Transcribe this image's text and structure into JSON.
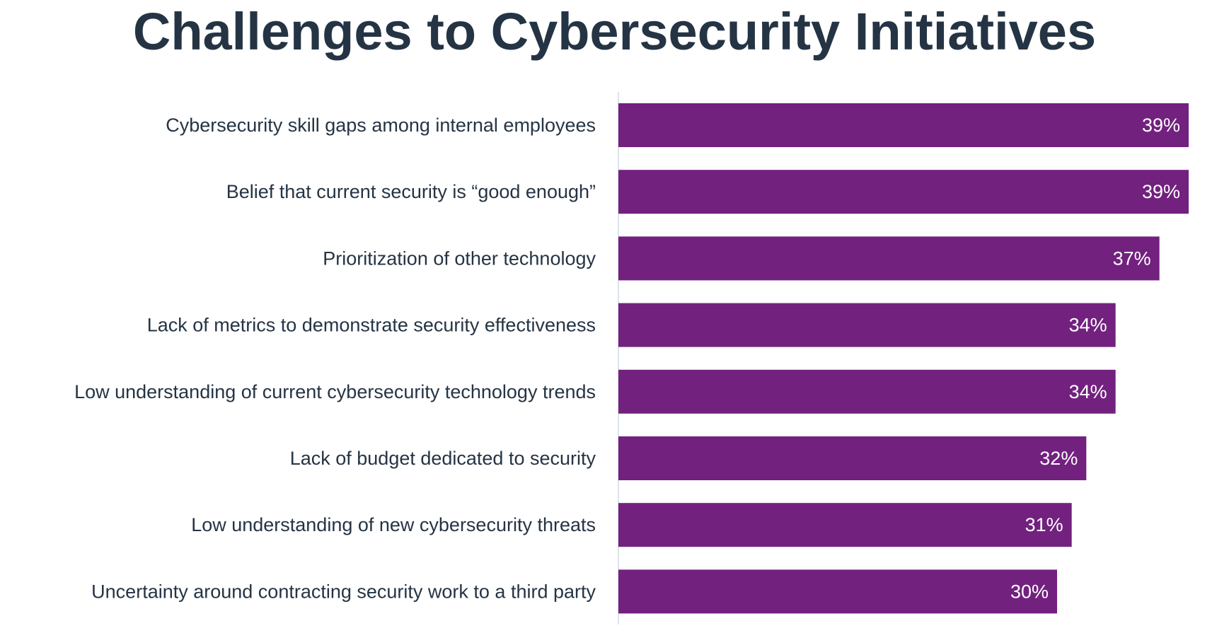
{
  "chart_data": {
    "type": "bar",
    "orientation": "horizontal",
    "title": "Challenges to Cybersecurity Initiatives",
    "categories": [
      "Cybersecurity skill gaps among internal employees",
      "Belief that current security is “good enough”",
      "Prioritization of other technology",
      "Lack of metrics to demonstrate security effectiveness",
      "Low understanding of current cybersecurity technology trends",
      "Lack of budget dedicated to security",
      "Low understanding of new cybersecurity threats",
      "Uncertainty around contracting security work to a third party"
    ],
    "values": [
      39,
      39,
      37,
      34,
      34,
      32,
      31,
      30
    ],
    "value_labels": [
      "39%",
      "39%",
      "37%",
      "34%",
      "34%",
      "32%",
      "31%",
      "30%"
    ],
    "unit": "%",
    "xlim": [
      0,
      39
    ],
    "grid": false,
    "legend": "none"
  },
  "colors": {
    "bar": "#72217F",
    "title": "#253444",
    "label_text": "#253444",
    "value_text": "#FFFFFF",
    "axis_line": "#D0DAE8"
  }
}
